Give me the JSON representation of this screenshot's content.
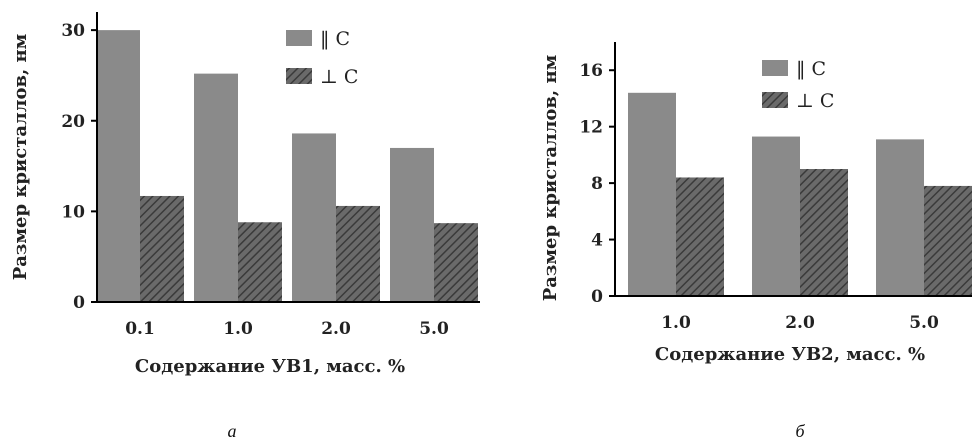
{
  "chart_data": [
    {
      "type": "bar",
      "panel_label": "а",
      "categories": [
        "0.1",
        "1.0",
        "2.0",
        "5.0"
      ],
      "series": [
        {
          "name": "‖ C",
          "values": [
            30.0,
            25.2,
            18.6,
            17.0
          ],
          "color": "#8a8a8a"
        },
        {
          "name": "⊥ C",
          "values": [
            11.7,
            8.8,
            10.6,
            8.7
          ],
          "color": "#555555",
          "pattern": "hatched"
        }
      ],
      "yticks": [
        "0",
        "10",
        "20",
        "30"
      ],
      "ylim": [
        0,
        32
      ],
      "xlabel": "Содержание УВ1, масс. %",
      "ylabel": "Размер кристаллов, нм",
      "legend_position": "top-right"
    },
    {
      "type": "bar",
      "panel_label": "б",
      "categories": [
        "1.0",
        "2.0",
        "5.0"
      ],
      "series": [
        {
          "name": "‖ C",
          "values": [
            14.4,
            11.3,
            11.1
          ],
          "color": "#8a8a8a"
        },
        {
          "name": "⊥ C",
          "values": [
            8.4,
            9.0,
            7.8
          ],
          "color": "#555555",
          "pattern": "hatched"
        }
      ],
      "yticks": [
        "0",
        "4",
        "8",
        "12",
        "16"
      ],
      "ylim": [
        0,
        18
      ],
      "xlabel": "Содержание УВ2, масс. %",
      "ylabel": "Размер кристаллов, нм",
      "legend_position": "top-right"
    }
  ]
}
